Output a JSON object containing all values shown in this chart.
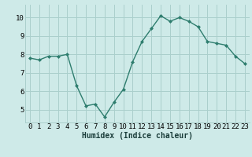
{
  "x": [
    0,
    1,
    2,
    3,
    4,
    5,
    6,
    7,
    8,
    9,
    10,
    11,
    12,
    13,
    14,
    15,
    16,
    17,
    18,
    19,
    20,
    21,
    22,
    23
  ],
  "y": [
    7.8,
    7.7,
    7.9,
    7.9,
    8.0,
    6.3,
    5.2,
    5.3,
    4.6,
    5.4,
    6.1,
    7.6,
    8.7,
    9.4,
    10.1,
    9.8,
    10.0,
    9.8,
    9.5,
    8.7,
    8.6,
    8.5,
    7.9,
    7.5
  ],
  "line_color": "#2e7d6e",
  "marker": "D",
  "marker_size": 2.0,
  "bg_color": "#ceeae8",
  "grid_color": "#aacfcc",
  "xlabel": "Humidex (Indice chaleur)",
  "xlabel_fontsize": 7,
  "tick_fontsize": 6.5,
  "ylim": [
    4.3,
    10.7
  ],
  "yticks": [
    5,
    6,
    7,
    8,
    9,
    10
  ],
  "xticks": [
    0,
    1,
    2,
    3,
    4,
    5,
    6,
    7,
    8,
    9,
    10,
    11,
    12,
    13,
    14,
    15,
    16,
    17,
    18,
    19,
    20,
    21,
    22,
    23
  ],
  "line_width": 1.0
}
